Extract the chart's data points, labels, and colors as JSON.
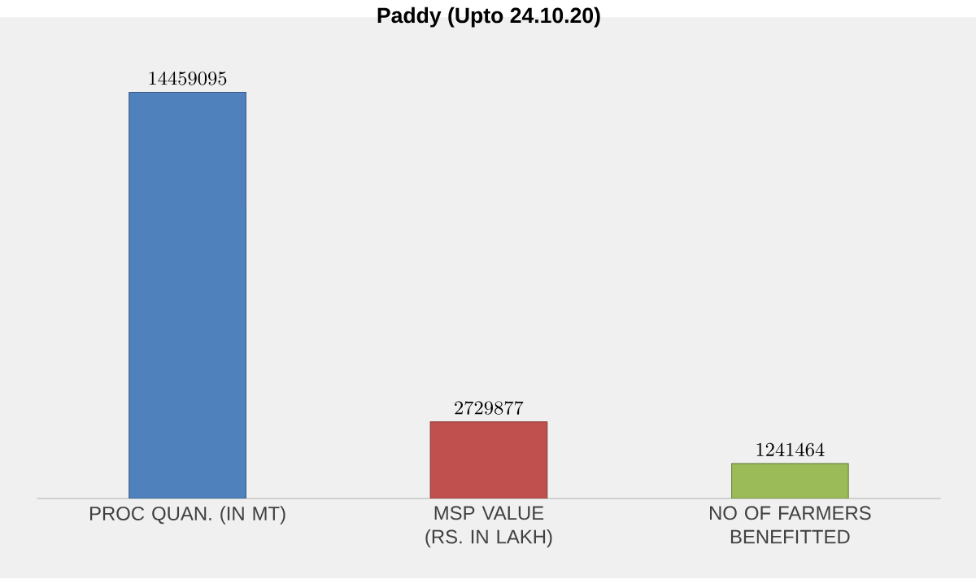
{
  "chart_data": {
    "type": "bar",
    "title": "Paddy (Upto 24.10.20)",
    "categories": [
      "PROC QUAN. (IN MT)",
      "MSP VALUE (RS. IN LAKH)",
      "NO OF FARMERS BENEFITTED"
    ],
    "values": [
      14459095,
      2729877,
      1241464
    ],
    "colors": [
      "#4f81bd",
      "#c0504d",
      "#9bbb59"
    ],
    "data_labels": true
  }
}
